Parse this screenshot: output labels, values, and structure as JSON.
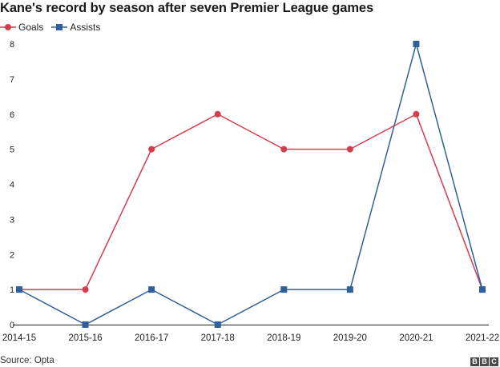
{
  "title": "Kane's record by season after seven Premier League games",
  "source": "Source: Opta",
  "logo_letters": [
    "B",
    "B",
    "C"
  ],
  "legend": [
    {
      "label": "Goals",
      "color": "#d63c4c",
      "marker": "circle"
    },
    {
      "label": "Assists",
      "color": "#2f5f9c",
      "marker": "square"
    }
  ],
  "chart_data": {
    "type": "line",
    "categories": [
      "2014-15",
      "2015-16",
      "2016-17",
      "2017-18",
      "2018-19",
      "2019-20",
      "2020-21",
      "2021-22"
    ],
    "series": [
      {
        "name": "Goals",
        "color": "#d63c4c",
        "marker": "circle",
        "values": [
          1,
          1,
          5,
          6,
          5,
          5,
          6,
          1
        ]
      },
      {
        "name": "Assists",
        "color": "#2f5f9c",
        "marker": "square",
        "values": [
          1,
          0,
          1,
          0,
          1,
          1,
          8,
          1
        ]
      }
    ],
    "yticks": [
      0,
      1,
      2,
      3,
      4,
      5,
      6,
      7,
      8
    ],
    "ylim": [
      0,
      8
    ],
    "xlabel": "",
    "ylabel": "",
    "grid": false,
    "legend_position": "top-left"
  }
}
